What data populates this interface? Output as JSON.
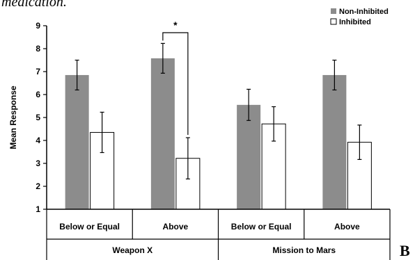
{
  "caption": "medication.",
  "panel_letter": "B",
  "chart_data": {
    "type": "bar",
    "ylabel": "Mean Response",
    "ylim": [
      1,
      9
    ],
    "yticks": [
      1,
      2,
      3,
      4,
      5,
      6,
      7,
      8,
      9
    ],
    "grid": false,
    "legend_position": "top-right",
    "groups": [
      "Weapon X",
      "Mission to Mars"
    ],
    "categories": [
      "Below or Equal",
      "Above",
      "Below or Equal",
      "Above"
    ],
    "series": [
      {
        "name": "Non-Inhibited",
        "color": "#8c8c8c",
        "values": [
          6.85,
          7.58,
          5.55,
          6.85
        ],
        "error": [
          0.65,
          0.65,
          0.68,
          0.65
        ]
      },
      {
        "name": "Inhibited",
        "color": "#ffffff",
        "values": [
          4.35,
          3.22,
          4.72,
          3.92
        ],
        "error": [
          0.88,
          0.9,
          0.75,
          0.75
        ]
      }
    ],
    "annotations": [
      {
        "text": "*",
        "category_index": 1,
        "between": [
          "Non-Inhibited",
          "Inhibited"
        ]
      }
    ]
  }
}
